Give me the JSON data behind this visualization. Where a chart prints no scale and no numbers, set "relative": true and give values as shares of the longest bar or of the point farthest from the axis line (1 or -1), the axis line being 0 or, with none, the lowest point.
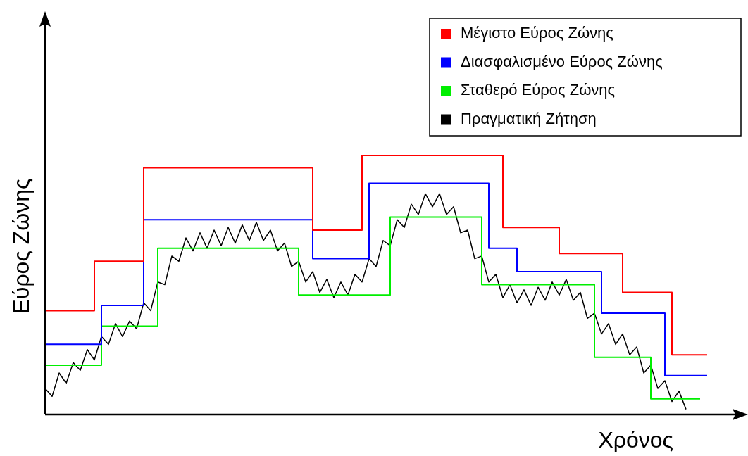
{
  "chart_data": {
    "type": "step",
    "relative": true,
    "xlabel": "Χρόνος",
    "ylabel": "Εύρος Ζώνης",
    "legend": "top right",
    "categories": [
      null,
      null,
      null,
      null,
      null,
      null,
      null,
      null,
      null,
      null,
      null,
      null,
      null,
      null,
      null,
      null,
      null,
      null,
      null,
      null,
      null,
      null,
      null,
      null,
      null,
      null,
      null,
      null,
      null,
      null,
      null,
      null,
      null,
      null,
      null,
      null,
      null,
      null,
      null,
      null,
      null,
      null,
      null,
      null,
      null,
      null,
      null,
      null,
      null,
      null,
      null,
      null,
      null,
      null,
      null,
      null,
      null,
      null,
      null,
      null,
      null,
      null,
      null,
      null,
      null,
      null,
      null,
      null,
      null,
      null,
      null,
      null,
      null,
      null,
      null,
      null,
      null,
      null,
      null,
      null,
      null,
      null,
      null,
      null,
      null,
      null,
      null,
      null,
      null,
      null,
      null,
      null,
      null,
      null,
      null,
      null,
      null,
      null,
      null,
      null
    ],
    "series": [
      {
        "name": "Μέγιστο Εύρος Ζώνης",
        "color": "#ff0000",
        "values": [
          0.4,
          0.4,
          0.4,
          0.4,
          0.4,
          0.4,
          0.4,
          0.59,
          0.59,
          0.59,
          0.59,
          0.59,
          0.59,
          0.59,
          0.95,
          0.95,
          0.95,
          0.95,
          0.95,
          0.95,
          0.95,
          0.95,
          0.95,
          0.95,
          0.95,
          0.95,
          0.95,
          0.95,
          0.95,
          0.95,
          0.95,
          0.95,
          0.95,
          0.95,
          0.95,
          0.95,
          0.95,
          0.95,
          0.71,
          0.71,
          0.71,
          0.71,
          0.71,
          0.71,
          0.71,
          1.0,
          1.0,
          1.0,
          1.0,
          1.0,
          1.0,
          1.0,
          1.0,
          1.0,
          1.0,
          1.0,
          1.0,
          1.0,
          1.0,
          1.0,
          1.0,
          1.0,
          1.0,
          1.0,
          1.0,
          0.72,
          0.72,
          0.72,
          0.72,
          0.72,
          0.72,
          0.72,
          0.72,
          0.62,
          0.62,
          0.62,
          0.62,
          0.62,
          0.62,
          0.62,
          0.62,
          0.62,
          0.47,
          0.47,
          0.47,
          0.47,
          0.47,
          0.47,
          0.47,
          0.23,
          0.23,
          0.23,
          0.23,
          0.23,
          0.23,
          null,
          null,
          null,
          null,
          null
        ]
      },
      {
        "name": "Διασφαλισμένο Εύρος Ζώνης",
        "color": "#0000ff",
        "values": [
          0.27,
          0.27,
          0.27,
          0.27,
          0.27,
          0.27,
          0.27,
          0.27,
          0.42,
          0.42,
          0.42,
          0.42,
          0.42,
          0.42,
          0.75,
          0.75,
          0.75,
          0.75,
          0.75,
          0.75,
          0.75,
          0.75,
          0.75,
          0.75,
          0.75,
          0.75,
          0.75,
          0.75,
          0.75,
          0.75,
          0.75,
          0.75,
          0.75,
          0.75,
          0.75,
          0.75,
          0.75,
          0.75,
          0.6,
          0.6,
          0.6,
          0.6,
          0.6,
          0.6,
          0.6,
          0.6,
          0.89,
          0.89,
          0.89,
          0.89,
          0.89,
          0.89,
          0.89,
          0.89,
          0.89,
          0.89,
          0.89,
          0.89,
          0.89,
          0.89,
          0.89,
          0.89,
          0.89,
          0.64,
          0.64,
          0.64,
          0.64,
          0.55,
          0.55,
          0.55,
          0.55,
          0.55,
          0.55,
          0.55,
          0.55,
          0.55,
          0.55,
          0.55,
          0.55,
          0.39,
          0.39,
          0.39,
          0.39,
          0.39,
          0.39,
          0.39,
          0.39,
          0.39,
          0.15,
          0.15,
          0.15,
          0.15,
          0.15,
          0.15,
          0.15,
          null,
          null,
          null,
          null,
          null
        ]
      },
      {
        "name": "Σταθερό Εύρος Ζώνης",
        "color": "#00ee00",
        "values": [
          0.19,
          0.19,
          0.19,
          0.19,
          0.19,
          0.19,
          0.19,
          0.19,
          0.34,
          0.34,
          0.34,
          0.34,
          0.34,
          0.34,
          0.34,
          0.34,
          0.64,
          0.64,
          0.64,
          0.64,
          0.64,
          0.64,
          0.64,
          0.64,
          0.64,
          0.64,
          0.64,
          0.64,
          0.64,
          0.64,
          0.64,
          0.64,
          0.64,
          0.64,
          0.64,
          0.64,
          0.46,
          0.46,
          0.46,
          0.46,
          0.46,
          0.46,
          0.46,
          0.46,
          0.46,
          0.46,
          0.46,
          0.46,
          0.46,
          0.76,
          0.76,
          0.76,
          0.76,
          0.76,
          0.76,
          0.76,
          0.76,
          0.76,
          0.76,
          0.76,
          0.76,
          0.76,
          0.5,
          0.5,
          0.5,
          0.5,
          0.5,
          0.5,
          0.5,
          0.5,
          0.5,
          0.5,
          0.5,
          0.5,
          0.5,
          0.5,
          0.5,
          0.5,
          0.22,
          0.22,
          0.22,
          0.22,
          0.22,
          0.22,
          0.22,
          0.22,
          0.06,
          0.06,
          0.06,
          0.06,
          0.06,
          0.06,
          0.06,
          0.06,
          null,
          null,
          null,
          null,
          null,
          null
        ]
      },
      {
        "name": "Πραγματική Ζήτηση",
        "color": "#000000",
        "type": "line",
        "values": [
          0.1,
          0.07,
          0.16,
          0.12,
          0.2,
          0.17,
          0.25,
          0.21,
          0.3,
          0.27,
          0.35,
          0.3,
          0.36,
          0.33,
          0.43,
          0.4,
          0.51,
          0.5,
          0.61,
          0.59,
          0.68,
          0.63,
          0.7,
          0.64,
          0.71,
          0.65,
          0.72,
          0.66,
          0.73,
          0.67,
          0.74,
          0.67,
          0.71,
          0.63,
          0.66,
          0.57,
          0.59,
          0.51,
          0.55,
          0.47,
          0.52,
          0.45,
          0.51,
          0.46,
          0.54,
          0.51,
          0.6,
          0.57,
          0.67,
          0.65,
          0.75,
          0.72,
          0.81,
          0.77,
          0.85,
          0.8,
          0.85,
          0.77,
          0.8,
          0.7,
          0.71,
          0.6,
          0.61,
          0.51,
          0.54,
          0.45,
          0.5,
          0.43,
          0.48,
          0.42,
          0.49,
          0.44,
          0.51,
          0.46,
          0.52,
          0.44,
          0.47,
          0.37,
          0.39,
          0.31,
          0.35,
          0.27,
          0.31,
          0.23,
          0.26,
          0.16,
          0.19,
          0.1,
          0.13,
          0.05,
          0.09,
          0.02,
          null,
          null,
          null,
          null,
          null,
          null,
          null,
          null
        ]
      }
    ]
  }
}
